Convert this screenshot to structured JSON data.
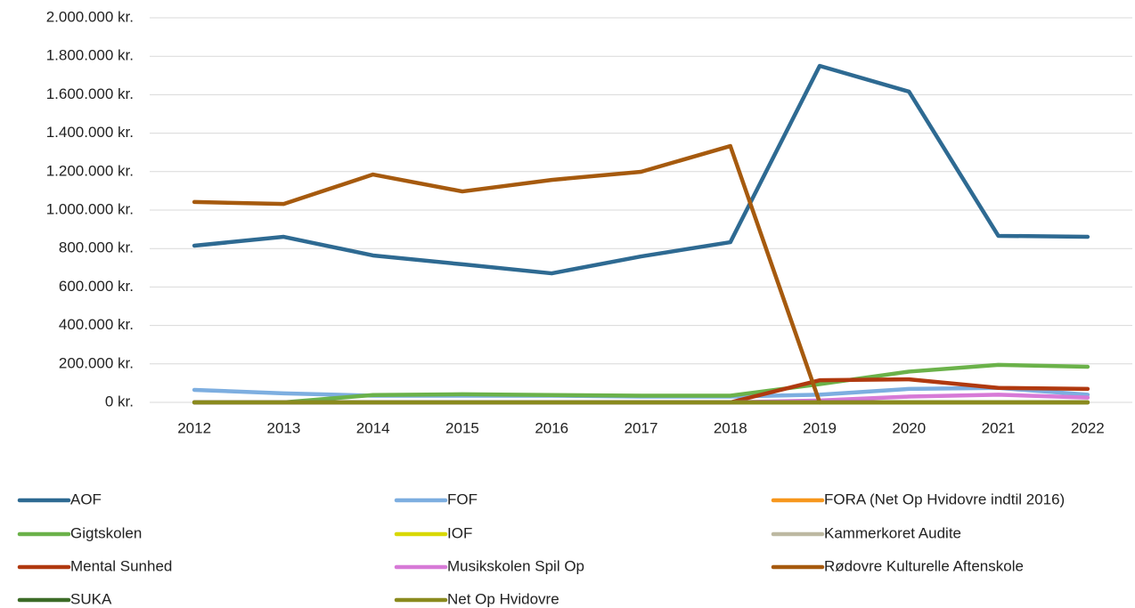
{
  "chart_data": {
    "type": "line",
    "categories": [
      "2012",
      "2013",
      "2014",
      "2015",
      "2016",
      "2017",
      "2018",
      "2019",
      "2020",
      "2021",
      "2022"
    ],
    "ylim": [
      0,
      2000000
    ],
    "yticks": [
      {
        "value": 0,
        "label": "0 kr."
      },
      {
        "value": 200000,
        "label": "200.000 kr."
      },
      {
        "value": 400000,
        "label": "400.000 kr."
      },
      {
        "value": 600000,
        "label": "600.000 kr."
      },
      {
        "value": 800000,
        "label": "800.000 kr."
      },
      {
        "value": 1000000,
        "label": "1.000.000 kr."
      },
      {
        "value": 1200000,
        "label": "1.200.000 kr."
      },
      {
        "value": 1400000,
        "label": "1.400.000 kr."
      },
      {
        "value": 1600000,
        "label": "1.600.000 kr."
      },
      {
        "value": 1800000,
        "label": "1.800.000 kr."
      },
      {
        "value": 2000000,
        "label": "2.000.000 kr."
      }
    ],
    "grid": true,
    "legend": "bottom",
    "series": [
      {
        "name": "AOF",
        "color": "#2e6a92",
        "values": [
          815000,
          861000,
          764000,
          718000,
          671000,
          759000,
          833000,
          1750000,
          1616000,
          866000,
          861000
        ]
      },
      {
        "name": "FOF",
        "color": "#7daee0",
        "values": [
          65000,
          47000,
          35000,
          35000,
          35000,
          30000,
          30000,
          40000,
          70000,
          75000,
          40000
        ]
      },
      {
        "name": "FORA (Net Op Hvidovre indtil 2016)",
        "color": "#f7971d",
        "values": [
          0,
          0,
          0,
          0,
          0,
          0,
          0,
          0,
          0,
          0,
          0
        ]
      },
      {
        "name": "Gigtskolen",
        "color": "#6bb24a",
        "values": [
          0,
          0,
          38000,
          42000,
          38000,
          35000,
          35000,
          95000,
          160000,
          195000,
          185000
        ]
      },
      {
        "name": "IOF",
        "color": "#d8d800",
        "values": [
          0,
          0,
          0,
          0,
          0,
          0,
          0,
          0,
          0,
          0,
          0
        ]
      },
      {
        "name": "Kammerkoret Audite",
        "color": "#bdb9a2",
        "values": [
          0,
          0,
          0,
          0,
          0,
          0,
          0,
          0,
          0,
          0,
          0
        ]
      },
      {
        "name": "Mental Sunhed",
        "color": "#b0390f",
        "values": [
          0,
          0,
          0,
          0,
          0,
          0,
          0,
          115000,
          120000,
          75000,
          70000
        ]
      },
      {
        "name": "Musikskolen Spil Op",
        "color": "#d77ad7",
        "values": [
          0,
          0,
          0,
          0,
          0,
          0,
          0,
          10000,
          30000,
          40000,
          25000
        ]
      },
      {
        "name": "Rødovre Kulturelle Aftenskole",
        "color": "#a65a0e",
        "values": [
          1042000,
          1032000,
          1185000,
          1097000,
          1157000,
          1199000,
          1333000,
          0,
          null,
          null,
          null
        ]
      },
      {
        "name": "SUKA",
        "color": "#3c6b27",
        "values": [
          0,
          0,
          0,
          0,
          0,
          0,
          0,
          0,
          0,
          0,
          0
        ]
      },
      {
        "name": "Net Op Hvidovre",
        "color": "#8a8a1e",
        "values": [
          0,
          0,
          0,
          0,
          0,
          0,
          0,
          0,
          0,
          0,
          0
        ]
      }
    ]
  }
}
